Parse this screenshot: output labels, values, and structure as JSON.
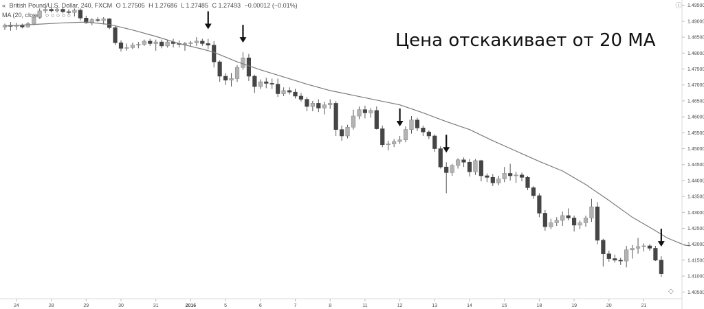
{
  "header": {
    "symbol_icon": "collapse-chevrons-icon",
    "symbol": "British Pound/U.S. Dollar, 240, FXCM",
    "open": "O 1.27505",
    "high": "H 1.27686",
    "low": "L 1.27485",
    "close": "C 1.27493",
    "change": "−0.00012 (−0.01%)",
    "indicator": "MA (20, close)",
    "indicator_values": "○ ○ ○ ○ ○"
  },
  "annotation": "Цена отскакивает от 20 МА",
  "colors": {
    "bull": "#b3b3b3",
    "bear": "#454545",
    "wick": "#555555",
    "ma": "#7a7a7a",
    "arrow": "#111111"
  },
  "chart_data": {
    "type": "candlestick",
    "title": "British Pound/U.S. Dollar, 240, FXCM",
    "xlabel": "",
    "ylabel": "",
    "ylim": [
      1.40291,
      1.49667
    ],
    "grid": false,
    "y_ticks": [
      "1.49500",
      "1.49000",
      "1.48500",
      "1.48000",
      "1.47500",
      "1.47000",
      "1.46500",
      "1.46000",
      "1.45500",
      "1.45000",
      "1.44500",
      "1.44000",
      "1.43500",
      "1.43000",
      "1.42500",
      "1.42000",
      "1.41500",
      "1.41000",
      "1.40500"
    ],
    "x_ticks": [
      {
        "label": "24",
        "bar": 2
      },
      {
        "label": "28",
        "bar": 8
      },
      {
        "label": "29",
        "bar": 14
      },
      {
        "label": "30",
        "bar": 20
      },
      {
        "label": "31",
        "bar": 26
      },
      {
        "label": "2016",
        "bar": 32,
        "bold": true
      },
      {
        "label": "5",
        "bar": 38
      },
      {
        "label": "6",
        "bar": 44
      },
      {
        "label": "7",
        "bar": 50
      },
      {
        "label": "8",
        "bar": 56
      },
      {
        "label": "11",
        "bar": 62
      },
      {
        "label": "12",
        "bar": 68
      },
      {
        "label": "13",
        "bar": 74
      },
      {
        "label": "14",
        "bar": 80
      },
      {
        "label": "15",
        "bar": 86
      },
      {
        "label": "18",
        "bar": 92
      },
      {
        "label": "19",
        "bar": 98
      },
      {
        "label": "20",
        "bar": 104
      },
      {
        "label": "21",
        "bar": 110
      }
    ],
    "candles": [
      [
        1.4882,
        1.48925,
        1.48725,
        1.48875
      ],
      [
        1.48875,
        1.48975,
        1.487,
        1.4884
      ],
      [
        1.4884,
        1.4895,
        1.48725,
        1.48865
      ],
      [
        1.48865,
        1.48925,
        1.48775,
        1.4882
      ],
      [
        1.4882,
        1.48975,
        1.488,
        1.48925
      ],
      [
        1.48925,
        1.492,
        1.48875,
        1.49125
      ],
      [
        1.49125,
        1.494,
        1.49075,
        1.49325
      ],
      [
        1.49325,
        1.495,
        1.4925,
        1.49375
      ],
      [
        1.49375,
        1.4945,
        1.49275,
        1.49325
      ],
      [
        1.49325,
        1.49425,
        1.49275,
        1.49375
      ],
      [
        1.49375,
        1.4945,
        1.4925,
        1.493
      ],
      [
        1.493,
        1.49375,
        1.49225,
        1.49275
      ],
      [
        1.49275,
        1.494,
        1.4915,
        1.4935
      ],
      [
        1.4935,
        1.494,
        1.49025,
        1.491
      ],
      [
        1.491,
        1.49175,
        1.48925,
        1.4895
      ],
      [
        1.4895,
        1.491,
        1.48875,
        1.4905
      ],
      [
        1.4905,
        1.49125,
        1.48975,
        1.49025
      ],
      [
        1.49025,
        1.49125,
        1.489,
        1.49075
      ],
      [
        1.49075,
        1.491,
        1.4875,
        1.488
      ],
      [
        1.488,
        1.4885,
        1.4825,
        1.48325
      ],
      [
        1.48325,
        1.484,
        1.4805,
        1.4815
      ],
      [
        1.4815,
        1.483,
        1.48075,
        1.48175
      ],
      [
        1.48175,
        1.48325,
        1.48125,
        1.4825
      ],
      [
        1.4825,
        1.4835,
        1.4815,
        1.48275
      ],
      [
        1.48275,
        1.48425,
        1.48225,
        1.48375
      ],
      [
        1.48375,
        1.4845,
        1.48225,
        1.483
      ],
      [
        1.483,
        1.48425,
        1.48075,
        1.4835
      ],
      [
        1.4835,
        1.48425,
        1.4815,
        1.48225
      ],
      [
        1.48225,
        1.48425,
        1.48175,
        1.4835
      ],
      [
        1.4835,
        1.4845,
        1.48175,
        1.483
      ],
      [
        1.483,
        1.484,
        1.48175,
        1.48275
      ],
      [
        1.48275,
        1.4835,
        1.48075,
        1.483
      ],
      [
        1.483,
        1.48375,
        1.482,
        1.48325
      ],
      [
        1.48325,
        1.485,
        1.48225,
        1.48375
      ],
      [
        1.48375,
        1.4845,
        1.48225,
        1.483
      ],
      [
        1.483,
        1.4845,
        1.48125,
        1.4825
      ],
      [
        1.4825,
        1.48375,
        1.4755,
        1.47725
      ],
      [
        1.47725,
        1.47775,
        1.471,
        1.47275
      ],
      [
        1.47275,
        1.47375,
        1.47,
        1.4715
      ],
      [
        1.4715,
        1.47375,
        1.4695,
        1.472
      ],
      [
        1.472,
        1.47625,
        1.471,
        1.4755
      ],
      [
        1.4755,
        1.48025,
        1.47475,
        1.4785
      ],
      [
        1.4785,
        1.47975,
        1.47125,
        1.47275
      ],
      [
        1.47275,
        1.47325,
        1.4675,
        1.4695
      ],
      [
        1.4695,
        1.47175,
        1.46875,
        1.471
      ],
      [
        1.471,
        1.47225,
        1.469,
        1.4705
      ],
      [
        1.4705,
        1.472,
        1.46875,
        1.47025
      ],
      [
        1.47025,
        1.472,
        1.46625,
        1.46725
      ],
      [
        1.46725,
        1.46925,
        1.4665,
        1.46825
      ],
      [
        1.46825,
        1.46925,
        1.467,
        1.46775
      ],
      [
        1.46775,
        1.46875,
        1.46575,
        1.4665
      ],
      [
        1.4665,
        1.4675,
        1.46475,
        1.4655
      ],
      [
        1.4655,
        1.46625,
        1.46175,
        1.46325
      ],
      [
        1.46325,
        1.465,
        1.46175,
        1.46425
      ],
      [
        1.46425,
        1.4655,
        1.4615,
        1.46275
      ],
      [
        1.46275,
        1.46475,
        1.46075,
        1.46375
      ],
      [
        1.46375,
        1.4655,
        1.4625,
        1.46425
      ],
      [
        1.46425,
        1.465,
        1.454,
        1.456
      ],
      [
        1.456,
        1.45725,
        1.4525,
        1.454
      ],
      [
        1.454,
        1.4575,
        1.45325,
        1.45675
      ],
      [
        1.45675,
        1.46225,
        1.456,
        1.46025
      ],
      [
        1.46025,
        1.46325,
        1.45925,
        1.46225
      ],
      [
        1.46225,
        1.4635,
        1.4595,
        1.46125
      ],
      [
        1.46125,
        1.46275,
        1.45975,
        1.462
      ],
      [
        1.462,
        1.46325,
        1.456,
        1.45625
      ],
      [
        1.45625,
        1.45725,
        1.4505,
        1.45125
      ],
      [
        1.45125,
        1.4525,
        1.4495,
        1.4515
      ],
      [
        1.4515,
        1.453,
        1.4505,
        1.45225
      ],
      [
        1.45225,
        1.454,
        1.4515,
        1.45275
      ],
      [
        1.45275,
        1.457,
        1.452,
        1.456
      ],
      [
        1.456,
        1.46025,
        1.45475,
        1.459
      ],
      [
        1.459,
        1.45975,
        1.4555,
        1.4565
      ],
      [
        1.4565,
        1.45725,
        1.454,
        1.45525
      ],
      [
        1.45525,
        1.45575,
        1.453,
        1.454
      ],
      [
        1.454,
        1.4545,
        1.449,
        1.45
      ],
      [
        1.45,
        1.45075,
        1.44375,
        1.44425
      ],
      [
        1.44425,
        1.44575,
        1.436,
        1.4425
      ],
      [
        1.4425,
        1.44525,
        1.4415,
        1.44475
      ],
      [
        1.44475,
        1.447,
        1.44375,
        1.4465
      ],
      [
        1.4465,
        1.44725,
        1.44425,
        1.44575
      ],
      [
        1.44575,
        1.44675,
        1.44125,
        1.44275
      ],
      [
        1.44275,
        1.44675,
        1.44175,
        1.44625
      ],
      [
        1.44625,
        1.4465,
        1.43975,
        1.4415
      ],
      [
        1.4415,
        1.44225,
        1.4395,
        1.441
      ],
      [
        1.441,
        1.442,
        1.43825,
        1.43925
      ],
      [
        1.43925,
        1.4415,
        1.4385,
        1.4405
      ],
      [
        1.4405,
        1.44425,
        1.4395,
        1.44225
      ],
      [
        1.44225,
        1.44525,
        1.44,
        1.4415
      ],
      [
        1.4415,
        1.44275,
        1.43925,
        1.44175
      ],
      [
        1.44175,
        1.4425,
        1.43975,
        1.441
      ],
      [
        1.441,
        1.4415,
        1.437,
        1.43775
      ],
      [
        1.43775,
        1.43825,
        1.43425,
        1.43525
      ],
      [
        1.43525,
        1.436,
        1.4285,
        1.42975
      ],
      [
        1.42975,
        1.43075,
        1.42425,
        1.4255
      ],
      [
        1.4255,
        1.428,
        1.42475,
        1.42675
      ],
      [
        1.42675,
        1.4285,
        1.42575,
        1.4275
      ],
      [
        1.4275,
        1.43025,
        1.42575,
        1.429
      ],
      [
        1.429,
        1.43125,
        1.4275,
        1.42825
      ],
      [
        1.42825,
        1.429,
        1.424,
        1.426
      ],
      [
        1.426,
        1.4275,
        1.42475,
        1.42675
      ],
      [
        1.42675,
        1.429,
        1.4255,
        1.42825
      ],
      [
        1.42825,
        1.43425,
        1.427,
        1.43175
      ],
      [
        1.43175,
        1.43325,
        1.42,
        1.42125
      ],
      [
        1.42125,
        1.42175,
        1.413,
        1.417
      ],
      [
        1.417,
        1.418,
        1.4145,
        1.4155
      ],
      [
        1.4155,
        1.41675,
        1.41425,
        1.415
      ],
      [
        1.415,
        1.41575,
        1.4135,
        1.41475
      ],
      [
        1.41475,
        1.4195,
        1.41275,
        1.41825
      ],
      [
        1.41825,
        1.41975,
        1.4155,
        1.41875
      ],
      [
        1.41875,
        1.422,
        1.417,
        1.41925
      ],
      [
        1.41925,
        1.42025,
        1.41775,
        1.4195
      ],
      [
        1.4195,
        1.42,
        1.418,
        1.41875
      ],
      [
        1.41875,
        1.4195,
        1.41475,
        1.415
      ],
      [
        1.415,
        1.41625,
        1.40975,
        1.41075
      ]
    ],
    "ma": [
      [
        0,
        1.4885
      ],
      [
        5,
        1.489
      ],
      [
        10,
        1.4895
      ],
      [
        14,
        1.48975
      ],
      [
        18,
        1.489
      ],
      [
        22,
        1.48725
      ],
      [
        26,
        1.48525
      ],
      [
        30,
        1.483
      ],
      [
        34,
        1.48125
      ],
      [
        36,
        1.48025
      ],
      [
        40,
        1.47725
      ],
      [
        44,
        1.47475
      ],
      [
        48,
        1.4725
      ],
      [
        52,
        1.47025
      ],
      [
        56,
        1.46825
      ],
      [
        60,
        1.46675
      ],
      [
        64,
        1.46525
      ],
      [
        68,
        1.46375
      ],
      [
        72,
        1.46125
      ],
      [
        76,
        1.4585
      ],
      [
        80,
        1.456
      ],
      [
        84,
        1.4525
      ],
      [
        88,
        1.44925
      ],
      [
        92,
        1.446
      ],
      [
        96,
        1.443
      ],
      [
        100,
        1.43875
      ],
      [
        104,
        1.43375
      ],
      [
        108,
        1.4285
      ],
      [
        112,
        1.42425
      ],
      [
        114,
        1.422
      ],
      [
        116,
        1.4205
      ],
      [
        117,
        1.41975
      ],
      [
        118,
        1.4195
      ]
    ],
    "arrow_bars": [
      35,
      41,
      68,
      76,
      113
    ]
  }
}
